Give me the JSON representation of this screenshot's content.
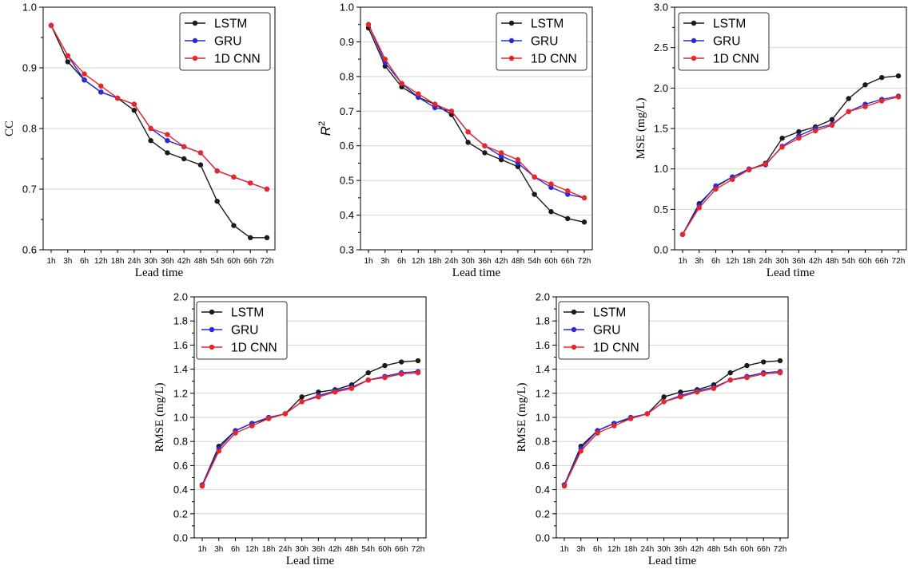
{
  "figure": {
    "description_panels": 5
  },
  "chart_data": [
    {
      "type": "line",
      "categories": [
        "1h",
        "3h",
        "6h",
        "12h",
        "18h",
        "24h",
        "30h",
        "36h",
        "42h",
        "48h",
        "54h",
        "60h",
        "66h",
        "72h"
      ],
      "xlabel": "Lead time",
      "ylabel": "CC",
      "ylim": [
        0.6,
        1.0
      ],
      "yticks": [
        "0.6",
        "0.7",
        "0.8",
        "0.9",
        "1.0"
      ],
      "ytick_values": [
        0.6,
        0.7,
        0.8,
        0.9,
        1.0
      ],
      "legend_position": "top-right",
      "grid": "horizontal",
      "series": [
        {
          "name": "LSTM",
          "color": "#1a1a1a",
          "values": [
            0.97,
            0.91,
            0.88,
            0.86,
            0.85,
            0.83,
            0.78,
            0.76,
            0.75,
            0.74,
            0.68,
            0.64,
            0.62,
            0.62
          ]
        },
        {
          "name": "GRU",
          "color": "#2a2ad8",
          "values": [
            0.97,
            0.92,
            0.88,
            0.86,
            0.85,
            0.84,
            0.8,
            0.78,
            0.77,
            0.76,
            0.73,
            0.72,
            0.71,
            0.7
          ]
        },
        {
          "name": "1D CNN",
          "color": "#e8262a",
          "values": [
            0.97,
            0.92,
            0.89,
            0.87,
            0.85,
            0.84,
            0.8,
            0.79,
            0.77,
            0.76,
            0.73,
            0.72,
            0.71,
            0.7
          ]
        }
      ]
    },
    {
      "type": "line",
      "categories": [
        "1h",
        "3h",
        "6h",
        "12h",
        "18h",
        "24h",
        "30h",
        "36h",
        "42h",
        "48h",
        "54h",
        "60h",
        "66h",
        "72h"
      ],
      "xlabel": "Lead time",
      "ylabel": "R",
      "ylabel_sup": "2",
      "ylim": [
        0.3,
        1.0
      ],
      "yticks": [
        "0.3",
        "0.4",
        "0.5",
        "0.6",
        "0.7",
        "0.8",
        "0.9",
        "1.0"
      ],
      "ytick_values": [
        0.3,
        0.4,
        0.5,
        0.6,
        0.7,
        0.8,
        0.9,
        1.0
      ],
      "legend_position": "top-right",
      "grid": "horizontal",
      "series": [
        {
          "name": "LSTM",
          "color": "#1a1a1a",
          "values": [
            0.94,
            0.83,
            0.77,
            0.74,
            0.72,
            0.69,
            0.61,
            0.58,
            0.56,
            0.54,
            0.46,
            0.41,
            0.39,
            0.38
          ]
        },
        {
          "name": "GRU",
          "color": "#2a2ad8",
          "values": [
            0.95,
            0.84,
            0.78,
            0.74,
            0.71,
            0.7,
            0.64,
            0.6,
            0.57,
            0.55,
            0.51,
            0.48,
            0.46,
            0.45
          ]
        },
        {
          "name": "1D CNN",
          "color": "#e8262a",
          "values": [
            0.95,
            0.85,
            0.78,
            0.75,
            0.72,
            0.7,
            0.64,
            0.6,
            0.58,
            0.56,
            0.51,
            0.49,
            0.47,
            0.45
          ]
        }
      ]
    },
    {
      "type": "line",
      "categories": [
        "1h",
        "3h",
        "6h",
        "12h",
        "18h",
        "24h",
        "30h",
        "36h",
        "42h",
        "48h",
        "54h",
        "60h",
        "66h",
        "72h"
      ],
      "xlabel": "Lead time",
      "ylabel": "MSE (mg/L)",
      "ylim": [
        0.0,
        3.0
      ],
      "yticks": [
        "0.0",
        "0.5",
        "1.0",
        "1.5",
        "2.0",
        "2.5",
        "3.0"
      ],
      "ytick_values": [
        0.0,
        0.5,
        1.0,
        1.5,
        2.0,
        2.5,
        3.0
      ],
      "legend_position": "top-left",
      "grid": "horizontal",
      "series": [
        {
          "name": "LSTM",
          "color": "#1a1a1a",
          "values": [
            0.19,
            0.57,
            0.78,
            0.9,
            0.99,
            1.07,
            1.38,
            1.46,
            1.52,
            1.61,
            1.87,
            2.04,
            2.13,
            2.15
          ]
        },
        {
          "name": "GRU",
          "color": "#2a2ad8",
          "values": [
            0.19,
            0.55,
            0.79,
            0.9,
            1.0,
            1.05,
            1.28,
            1.41,
            1.5,
            1.55,
            1.71,
            1.8,
            1.86,
            1.9
          ]
        },
        {
          "name": "1D CNN",
          "color": "#e8262a",
          "values": [
            0.19,
            0.52,
            0.75,
            0.87,
            0.99,
            1.06,
            1.27,
            1.38,
            1.47,
            1.54,
            1.71,
            1.77,
            1.84,
            1.89
          ]
        }
      ]
    },
    {
      "type": "line",
      "categories": [
        "1h",
        "3h",
        "6h",
        "12h",
        "18h",
        "24h",
        "30h",
        "36h",
        "42h",
        "48h",
        "54h",
        "60h",
        "66h",
        "72h"
      ],
      "xlabel": "Lead time",
      "ylabel": "RMSE (mg/L)",
      "ylim": [
        0.0,
        2.0
      ],
      "yticks": [
        "0.0",
        "0.2",
        "0.4",
        "0.6",
        "0.8",
        "1.0",
        "1.2",
        "1.4",
        "1.6",
        "1.8",
        "2.0"
      ],
      "ytick_values": [
        0.0,
        0.2,
        0.4,
        0.6,
        0.8,
        1.0,
        1.2,
        1.4,
        1.6,
        1.8,
        2.0
      ],
      "legend_position": "top-left",
      "grid": "horizontal",
      "series": [
        {
          "name": "LSTM",
          "color": "#1a1a1a",
          "values": [
            0.44,
            0.76,
            0.89,
            0.95,
            0.99,
            1.03,
            1.17,
            1.21,
            1.23,
            1.27,
            1.37,
            1.43,
            1.46,
            1.47
          ]
        },
        {
          "name": "GRU",
          "color": "#2a2ad8",
          "values": [
            0.44,
            0.74,
            0.89,
            0.95,
            1.0,
            1.03,
            1.13,
            1.18,
            1.22,
            1.25,
            1.31,
            1.34,
            1.37,
            1.38
          ]
        },
        {
          "name": "1D CNN",
          "color": "#e8262a",
          "values": [
            0.43,
            0.72,
            0.87,
            0.93,
            0.99,
            1.03,
            1.13,
            1.17,
            1.21,
            1.24,
            1.31,
            1.33,
            1.36,
            1.37
          ]
        }
      ]
    },
    {
      "type": "line",
      "categories": [
        "1h",
        "3h",
        "6h",
        "12h",
        "18h",
        "24h",
        "30h",
        "36h",
        "42h",
        "48h",
        "54h",
        "60h",
        "66h",
        "72h"
      ],
      "xlabel": "Lead time",
      "ylabel": "RMSE (mg/L)",
      "ylim": [
        0.0,
        2.0
      ],
      "yticks": [
        "0.0",
        "0.2",
        "0.4",
        "0.6",
        "0.8",
        "1.0",
        "1.2",
        "1.4",
        "1.6",
        "1.8",
        "2.0"
      ],
      "ytick_values": [
        0.0,
        0.2,
        0.4,
        0.6,
        0.8,
        1.0,
        1.2,
        1.4,
        1.6,
        1.8,
        2.0
      ],
      "legend_position": "top-left",
      "grid": "horizontal",
      "series": [
        {
          "name": "LSTM",
          "color": "#1a1a1a",
          "values": [
            0.44,
            0.76,
            0.89,
            0.95,
            0.99,
            1.03,
            1.17,
            1.21,
            1.23,
            1.27,
            1.37,
            1.43,
            1.46,
            1.47
          ]
        },
        {
          "name": "GRU",
          "color": "#2a2ad8",
          "values": [
            0.44,
            0.74,
            0.89,
            0.95,
            1.0,
            1.03,
            1.13,
            1.18,
            1.22,
            1.25,
            1.31,
            1.34,
            1.37,
            1.38
          ]
        },
        {
          "name": "1D CNN",
          "color": "#e8262a",
          "values": [
            0.43,
            0.72,
            0.87,
            0.93,
            0.99,
            1.03,
            1.13,
            1.17,
            1.21,
            1.24,
            1.31,
            1.33,
            1.36,
            1.37
          ]
        }
      ]
    }
  ]
}
